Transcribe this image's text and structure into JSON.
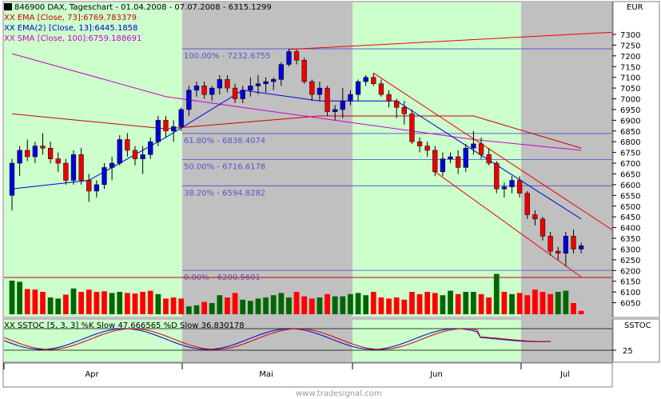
{
  "chart_data": [
    {
      "type": "candlestick",
      "title": "846900  DAX, Tageschart - 01.04.2008 - 07.07.2008 - 6315.1299",
      "currency": "EUR",
      "ylim": [
        6000,
        7350
      ],
      "y_ticks": [
        "7300",
        "7250",
        "7200",
        "7150",
        "7100",
        "7050",
        "7000",
        "6950",
        "6900",
        "6850",
        "6800",
        "6750",
        "6700",
        "6650",
        "6600",
        "6550",
        "6500",
        "6450",
        "6400",
        "6350",
        "6300",
        "6250",
        "6200",
        "6150",
        "6100",
        "6050"
      ],
      "x_ticks": [
        "Apr",
        "Mai",
        "Jun",
        "Jul"
      ],
      "background_bands": [
        "green",
        "gray",
        "green",
        "gray"
      ],
      "legend": [
        {
          "prefix": "XX",
          "text": "EMA [Close, 73]:6769.783379",
          "color": "#cc0000"
        },
        {
          "prefix": "XX",
          "text": "EMA(2) [Close, 13]:6445.1858",
          "color": "#0000cc"
        },
        {
          "prefix": "XX",
          "text": "SMA [Close, 100]:6759.188691",
          "color": "#cc00cc"
        }
      ],
      "fib_levels": [
        {
          "label": "100.00% - 7232.6755",
          "value": 7232.6755
        },
        {
          "label": "61.80% - 6838.4074",
          "value": 6838.4074
        },
        {
          "label": "50.00% - 6716.6178",
          "value": 6716.6178
        },
        {
          "label": "38.20% - 6594.8282",
          "value": 6594.8282
        },
        {
          "label": "0.00% - 6200.5601",
          "value": 6200.5601
        }
      ],
      "candles": [
        [
          6550,
          6720,
          6480,
          6700
        ],
        [
          6700,
          6780,
          6640,
          6760
        ],
        [
          6760,
          6810,
          6710,
          6730
        ],
        [
          6730,
          6800,
          6700,
          6780
        ],
        [
          6780,
          6840,
          6740,
          6770
        ],
        [
          6770,
          6800,
          6700,
          6720
        ],
        [
          6720,
          6750,
          6660,
          6700
        ],
        [
          6700,
          6720,
          6600,
          6620
        ],
        [
          6620,
          6760,
          6600,
          6740
        ],
        [
          6740,
          6770,
          6600,
          6620
        ],
        [
          6620,
          6650,
          6520,
          6570
        ],
        [
          6570,
          6620,
          6540,
          6600
        ],
        [
          6600,
          6700,
          6580,
          6680
        ],
        [
          6680,
          6730,
          6620,
          6700
        ],
        [
          6700,
          6830,
          6690,
          6810
        ],
        [
          6810,
          6840,
          6730,
          6760
        ],
        [
          6760,
          6780,
          6690,
          6720
        ],
        [
          6720,
          6780,
          6650,
          6740
        ],
        [
          6740,
          6820,
          6720,
          6800
        ],
        [
          6800,
          6920,
          6780,
          6900
        ],
        [
          6900,
          6920,
          6820,
          6850
        ],
        [
          6850,
          6900,
          6800,
          6870
        ],
        [
          6870,
          6960,
          6850,
          6950
        ],
        [
          6950,
          7060,
          6920,
          7040
        ],
        [
          7040,
          7080,
          7010,
          7060
        ],
        [
          7060,
          7080,
          7000,
          7020
        ],
        [
          7020,
          7060,
          6990,
          7050
        ],
        [
          7050,
          7110,
          7020,
          7090
        ],
        [
          7090,
          7110,
          7030,
          7050
        ],
        [
          7050,
          7070,
          6980,
          7000
        ],
        [
          7000,
          7060,
          6980,
          7040
        ],
        [
          7040,
          7100,
          7010,
          7060
        ],
        [
          7060,
          7110,
          7020,
          7070
        ],
        [
          7070,
          7100,
          7030,
          7080
        ],
        [
          7080,
          7100,
          7040,
          7090
        ],
        [
          7090,
          7170,
          7060,
          7160
        ],
        [
          7160,
          7232,
          7150,
          7220
        ],
        [
          7220,
          7230,
          7160,
          7180
        ],
        [
          7180,
          7190,
          7070,
          7080
        ],
        [
          7080,
          7090,
          6990,
          7020
        ],
        [
          7020,
          7080,
          6990,
          7050
        ],
        [
          7050,
          7060,
          6920,
          6940
        ],
        [
          6940,
          6970,
          6900,
          6950
        ],
        [
          6950,
          7050,
          6910,
          6990
        ],
        [
          6990,
          7040,
          6970,
          7020
        ],
        [
          7020,
          7090,
          6990,
          7080
        ],
        [
          7080,
          7110,
          7060,
          7100
        ],
        [
          7100,
          7120,
          7060,
          7070
        ],
        [
          7070,
          7090,
          7010,
          7020
        ],
        [
          7020,
          7040,
          6960,
          6990
        ],
        [
          6990,
          7000,
          6910,
          6960
        ],
        [
          6960,
          6990,
          6880,
          6930
        ],
        [
          6930,
          6950,
          6790,
          6800
        ],
        [
          6800,
          6820,
          6750,
          6780
        ],
        [
          6780,
          6800,
          6730,
          6760
        ],
        [
          6760,
          6780,
          6640,
          6660
        ],
        [
          6660,
          6750,
          6640,
          6720
        ],
        [
          6720,
          6750,
          6700,
          6730
        ],
        [
          6730,
          6760,
          6650,
          6680
        ],
        [
          6680,
          6790,
          6660,
          6770
        ],
        [
          6770,
          6850,
          6740,
          6790
        ],
        [
          6790,
          6820,
          6720,
          6740
        ],
        [
          6740,
          6770,
          6690,
          6700
        ],
        [
          6700,
          6710,
          6560,
          6580
        ],
        [
          6580,
          6610,
          6540,
          6590
        ],
        [
          6590,
          6640,
          6560,
          6620
        ],
        [
          6620,
          6640,
          6540,
          6560
        ],
        [
          6560,
          6570,
          6440,
          6460
        ],
        [
          6460,
          6480,
          6410,
          6440
        ],
        [
          6440,
          6450,
          6340,
          6360
        ],
        [
          6360,
          6380,
          6270,
          6290
        ],
        [
          6290,
          6310,
          6250,
          6280
        ],
        [
          6280,
          6380,
          6220,
          6360
        ],
        [
          6360,
          6390,
          6280,
          6300
        ],
        [
          6300,
          6330,
          6280,
          6315
        ]
      ],
      "ema73": [
        [
          0,
          6930
        ],
        [
          20,
          6860
        ],
        [
          40,
          6920
        ],
        [
          60,
          6920
        ],
        [
          74,
          6770
        ]
      ],
      "ema13": [
        [
          0,
          6580
        ],
        [
          10,
          6620
        ],
        [
          20,
          6820
        ],
        [
          30,
          7040
        ],
        [
          40,
          6990
        ],
        [
          50,
          6990
        ],
        [
          60,
          6760
        ],
        [
          74,
          6440
        ]
      ],
      "sma100": [
        [
          0,
          7210
        ],
        [
          20,
          7010
        ],
        [
          40,
          6910
        ],
        [
          60,
          6810
        ],
        [
          74,
          6760
        ]
      ],
      "trend_lines": [
        [
          [
            36,
            7230
          ],
          [
            78,
            7310
          ]
        ],
        [
          [
            47,
            7120
          ],
          [
            78,
            6390
          ]
        ],
        [
          [
            55,
            6660
          ],
          [
            74,
            6170
          ]
        ]
      ],
      "volume": [
        60,
        58,
        45,
        44,
        40,
        30,
        28,
        35,
        46,
        40,
        44,
        40,
        41,
        38,
        40,
        38,
        37,
        40,
        42,
        36,
        28,
        30,
        28,
        14,
        16,
        22,
        20,
        34,
        30,
        38,
        26,
        24,
        28,
        30,
        34,
        38,
        30,
        40,
        32,
        28,
        30,
        36,
        32,
        32,
        36,
        38,
        34,
        40,
        30,
        28,
        30,
        26,
        40,
        36,
        40,
        38,
        34,
        42,
        36,
        40,
        40,
        36,
        30,
        72,
        40,
        36,
        38,
        34,
        44,
        40,
        36,
        40,
        42,
        20,
        6
      ],
      "volume_colors": [
        "g",
        "g",
        "r",
        "r",
        "r",
        "g",
        "g",
        "r",
        "g",
        "r",
        "r",
        "r",
        "r",
        "g",
        "g",
        "r",
        "r",
        "r",
        "r",
        "g",
        "r",
        "r",
        "r",
        "g",
        "g",
        "r",
        "g",
        "g",
        "r",
        "r",
        "g",
        "g",
        "g",
        "g",
        "g",
        "g",
        "g",
        "r",
        "r",
        "r",
        "g",
        "r",
        "g",
        "g",
        "g",
        "g",
        "g",
        "r",
        "r",
        "r",
        "r",
        "r",
        "r",
        "r",
        "r",
        "r",
        "g",
        "g",
        "r",
        "g",
        "g",
        "r",
        "r",
        "g",
        "r",
        "g",
        "r",
        "r",
        "r",
        "r",
        "r",
        "g",
        "g",
        "r",
        "r"
      ]
    },
    {
      "type": "line",
      "title": "XX SSTOC [5, 3, 3] %K Slow 47.666565 %D Slow 36.830178",
      "panel_label": "SSTOC",
      "y_ticks": [
        "25"
      ],
      "series": [
        {
          "name": "%K Slow",
          "color": "#0000cc"
        },
        {
          "name": "%D Slow",
          "color": "#cc0000"
        }
      ]
    }
  ],
  "footer": {
    "watermark": "www.tradesignal.com"
  }
}
